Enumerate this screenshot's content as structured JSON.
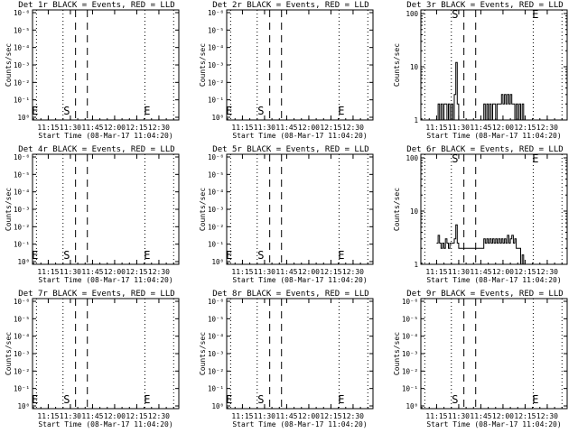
{
  "chart_data": [
    {
      "title": "Det 1r BLACK = Events, RED = LLD",
      "xlabel": "Start Time (08-Mar-17 11:04:20)",
      "ylabel": "Counts/sec",
      "type": "line",
      "yscale": "log",
      "y_ticks": [
        "10⁰",
        "10⁻¹",
        "10⁻²",
        "10⁻³",
        "10⁻⁴",
        "10⁻⁵",
        "10⁻⁶"
      ],
      "x_ticks": [
        "11:15",
        "11:30",
        "11:45",
        "12:00",
        "12:15",
        "12:30"
      ],
      "markers": [
        "E",
        "S",
        "E"
      ],
      "series": []
    },
    {
      "title": "Det 2r BLACK = Events, RED = LLD",
      "xlabel": "Start Time (08-Mar-17 11:04:20)",
      "ylabel": "Counts/sec",
      "type": "line",
      "yscale": "log",
      "y_ticks": [
        "10⁰",
        "10⁻¹",
        "10⁻²",
        "10⁻³",
        "10⁻⁴",
        "10⁻⁵",
        "10⁻⁶"
      ],
      "x_ticks": [
        "11:15",
        "11:30",
        "11:45",
        "12:00",
        "12:15",
        "12:30"
      ],
      "markers": [
        "E",
        "S",
        "E"
      ],
      "series": []
    },
    {
      "title": "Det 3r BLACK = Events, RED = LLD",
      "xlabel": "Start Time (08-Mar-17 11:04:20)",
      "ylabel": "Counts/sec",
      "type": "line",
      "yscale": "log",
      "y_ticks": [
        "1",
        "10",
        "100"
      ],
      "x_ticks": [
        "11:15",
        "11:30",
        "11:45",
        "12:00",
        "12:15",
        "12:30"
      ],
      "markers": [
        "S",
        "E"
      ],
      "series": [
        {
          "name": "Events",
          "x": [
            "11:15",
            "11:16",
            "11:17",
            "11:18",
            "11:19",
            "11:20",
            "11:21",
            "11:22",
            "11:23",
            "11:24",
            "11:25",
            "11:26",
            "11:27",
            "11:28",
            "11:29",
            "11:30",
            "11:31",
            "11:32",
            "11:33",
            "11:34",
            "11:35",
            "11:36",
            "11:37",
            "11:38",
            "11:39",
            "11:40",
            "11:41",
            "11:42",
            "11:43",
            "11:44",
            "11:45",
            "11:46",
            "11:47",
            "11:48",
            "11:49",
            "11:50",
            "11:51",
            "11:52",
            "11:53",
            "11:54",
            "11:55",
            "11:56",
            "11:57",
            "11:58",
            "11:59",
            "12:00",
            "12:01",
            "12:02",
            "12:03",
            "12:04",
            "12:05",
            "12:06",
            "12:07",
            "12:08",
            "12:09",
            "12:10",
            "12:11",
            "12:12",
            "12:13",
            "12:14"
          ],
          "values": [
            1,
            2,
            1,
            2,
            1,
            2,
            2,
            1,
            2,
            1,
            2,
            1,
            3,
            12,
            2,
            1,
            1,
            1,
            1,
            1,
            1,
            1,
            1,
            1,
            1,
            1,
            1,
            1,
            1,
            1,
            1,
            1,
            2,
            1,
            2,
            1,
            2,
            1,
            2,
            2,
            1,
            2,
            2,
            2,
            3,
            2,
            3,
            2,
            3,
            2,
            3,
            2,
            2,
            1,
            2,
            1,
            2,
            1,
            2,
            1
          ]
        }
      ]
    },
    {
      "title": "Det 4r BLACK = Events, RED = LLD",
      "xlabel": "Start Time (08-Mar-17 11:04:20)",
      "ylabel": "Counts/sec",
      "type": "line",
      "yscale": "log",
      "y_ticks": [
        "10⁰",
        "10⁻¹",
        "10⁻²",
        "10⁻³",
        "10⁻⁴",
        "10⁻⁵",
        "10⁻⁶"
      ],
      "x_ticks": [
        "11:15",
        "11:30",
        "11:45",
        "12:00",
        "12:15",
        "12:30"
      ],
      "markers": [
        "E",
        "S",
        "E"
      ],
      "series": []
    },
    {
      "title": "Det 5r BLACK = Events, RED = LLD",
      "xlabel": "Start Time (08-Mar-17 11:04:20)",
      "ylabel": "Counts/sec",
      "type": "line",
      "yscale": "log",
      "y_ticks": [
        "10⁰",
        "10⁻¹",
        "10⁻²",
        "10⁻³",
        "10⁻⁴",
        "10⁻⁵",
        "10⁻⁶"
      ],
      "x_ticks": [
        "11:15",
        "11:30",
        "11:45",
        "12:00",
        "12:15",
        "12:30"
      ],
      "markers": [
        "E",
        "S",
        "E"
      ],
      "series": []
    },
    {
      "title": "Det 6r BLACK = Events, RED = LLD",
      "xlabel": "Start Time (08-Mar-17 11:04:20)",
      "ylabel": "Counts/sec",
      "type": "line",
      "yscale": "log",
      "y_ticks": [
        "1",
        "10",
        "100"
      ],
      "x_ticks": [
        "11:15",
        "11:30",
        "11:45",
        "12:00",
        "12:15",
        "12:30"
      ],
      "markers": [
        "S",
        "E"
      ],
      "series": [
        {
          "name": "Events",
          "x": [
            "11:15",
            "11:16",
            "11:17",
            "11:18",
            "11:19",
            "11:20",
            "11:21",
            "11:22",
            "11:23",
            "11:24",
            "11:25",
            "11:26",
            "11:27",
            "11:28",
            "11:29",
            "11:30",
            "11:31",
            "11:32",
            "11:33",
            "11:34",
            "11:35",
            "11:36",
            "11:37",
            "11:38",
            "11:39",
            "11:40",
            "11:41",
            "11:42",
            "11:43",
            "11:44",
            "11:45",
            "11:46",
            "11:47",
            "11:48",
            "11:49",
            "11:50",
            "11:51",
            "11:52",
            "11:53",
            "11:54",
            "11:55",
            "11:56",
            "11:57",
            "11:58",
            "11:59",
            "12:00",
            "12:01",
            "12:02",
            "12:03",
            "12:04",
            "12:05",
            "12:06",
            "12:07",
            "12:08",
            "12:09",
            "12:10",
            "12:11",
            "12:12",
            "12:13",
            "12:14"
          ],
          "values": [
            2.5,
            3.5,
            2.5,
            2,
            2.5,
            2,
            3,
            2.5,
            2,
            2.5,
            2.5,
            2.5,
            3,
            5.5,
            2.5,
            2,
            2,
            2,
            2,
            2,
            2,
            2,
            2,
            2,
            2,
            2,
            2,
            2,
            2,
            2,
            2,
            2,
            3,
            2.5,
            3,
            2.5,
            3,
            2.5,
            3,
            2.5,
            3,
            2.5,
            3,
            2.5,
            3,
            2.5,
            3,
            2.5,
            3.5,
            2.5,
            3,
            3.5,
            2.5,
            3,
            2,
            2,
            2,
            1,
            1.5,
            1
          ]
        }
      ]
    },
    {
      "title": "Det 7r BLACK = Events, RED = LLD",
      "xlabel": "Start Time (08-Mar-17 11:04:20)",
      "ylabel": "Counts/sec",
      "type": "line",
      "yscale": "log",
      "y_ticks": [
        "10⁰",
        "10⁻¹",
        "10⁻²",
        "10⁻³",
        "10⁻⁴",
        "10⁻⁵",
        "10⁻⁶"
      ],
      "x_ticks": [
        "11:15",
        "11:30",
        "11:45",
        "12:00",
        "12:15",
        "12:30"
      ],
      "markers": [
        "E",
        "S",
        "E"
      ],
      "series": []
    },
    {
      "title": "Det 8r BLACK = Events, RED = LLD",
      "xlabel": "Start Time (08-Mar-17 11:04:20)",
      "ylabel": "Counts/sec",
      "type": "line",
      "yscale": "log",
      "y_ticks": [
        "10⁰",
        "10⁻¹",
        "10⁻²",
        "10⁻³",
        "10⁻⁴",
        "10⁻⁵",
        "10⁻⁶"
      ],
      "x_ticks": [
        "11:15",
        "11:30",
        "11:45",
        "12:00",
        "12:15",
        "12:30"
      ],
      "markers": [
        "E",
        "S",
        "E"
      ],
      "series": []
    },
    {
      "title": "Det 9r BLACK = Events, RED = LLD",
      "xlabel": "Start Time (08-Mar-17 11:04:20)",
      "ylabel": "Counts/sec",
      "type": "line",
      "yscale": "log",
      "y_ticks": [
        "10⁰",
        "10⁻¹",
        "10⁻²",
        "10⁻³",
        "10⁻⁴",
        "10⁻⁵",
        "10⁻⁶"
      ],
      "x_ticks": [
        "11:15",
        "11:30",
        "11:45",
        "12:00",
        "12:15",
        "12:30"
      ],
      "markers": [
        "S",
        "E"
      ],
      "series": []
    }
  ]
}
